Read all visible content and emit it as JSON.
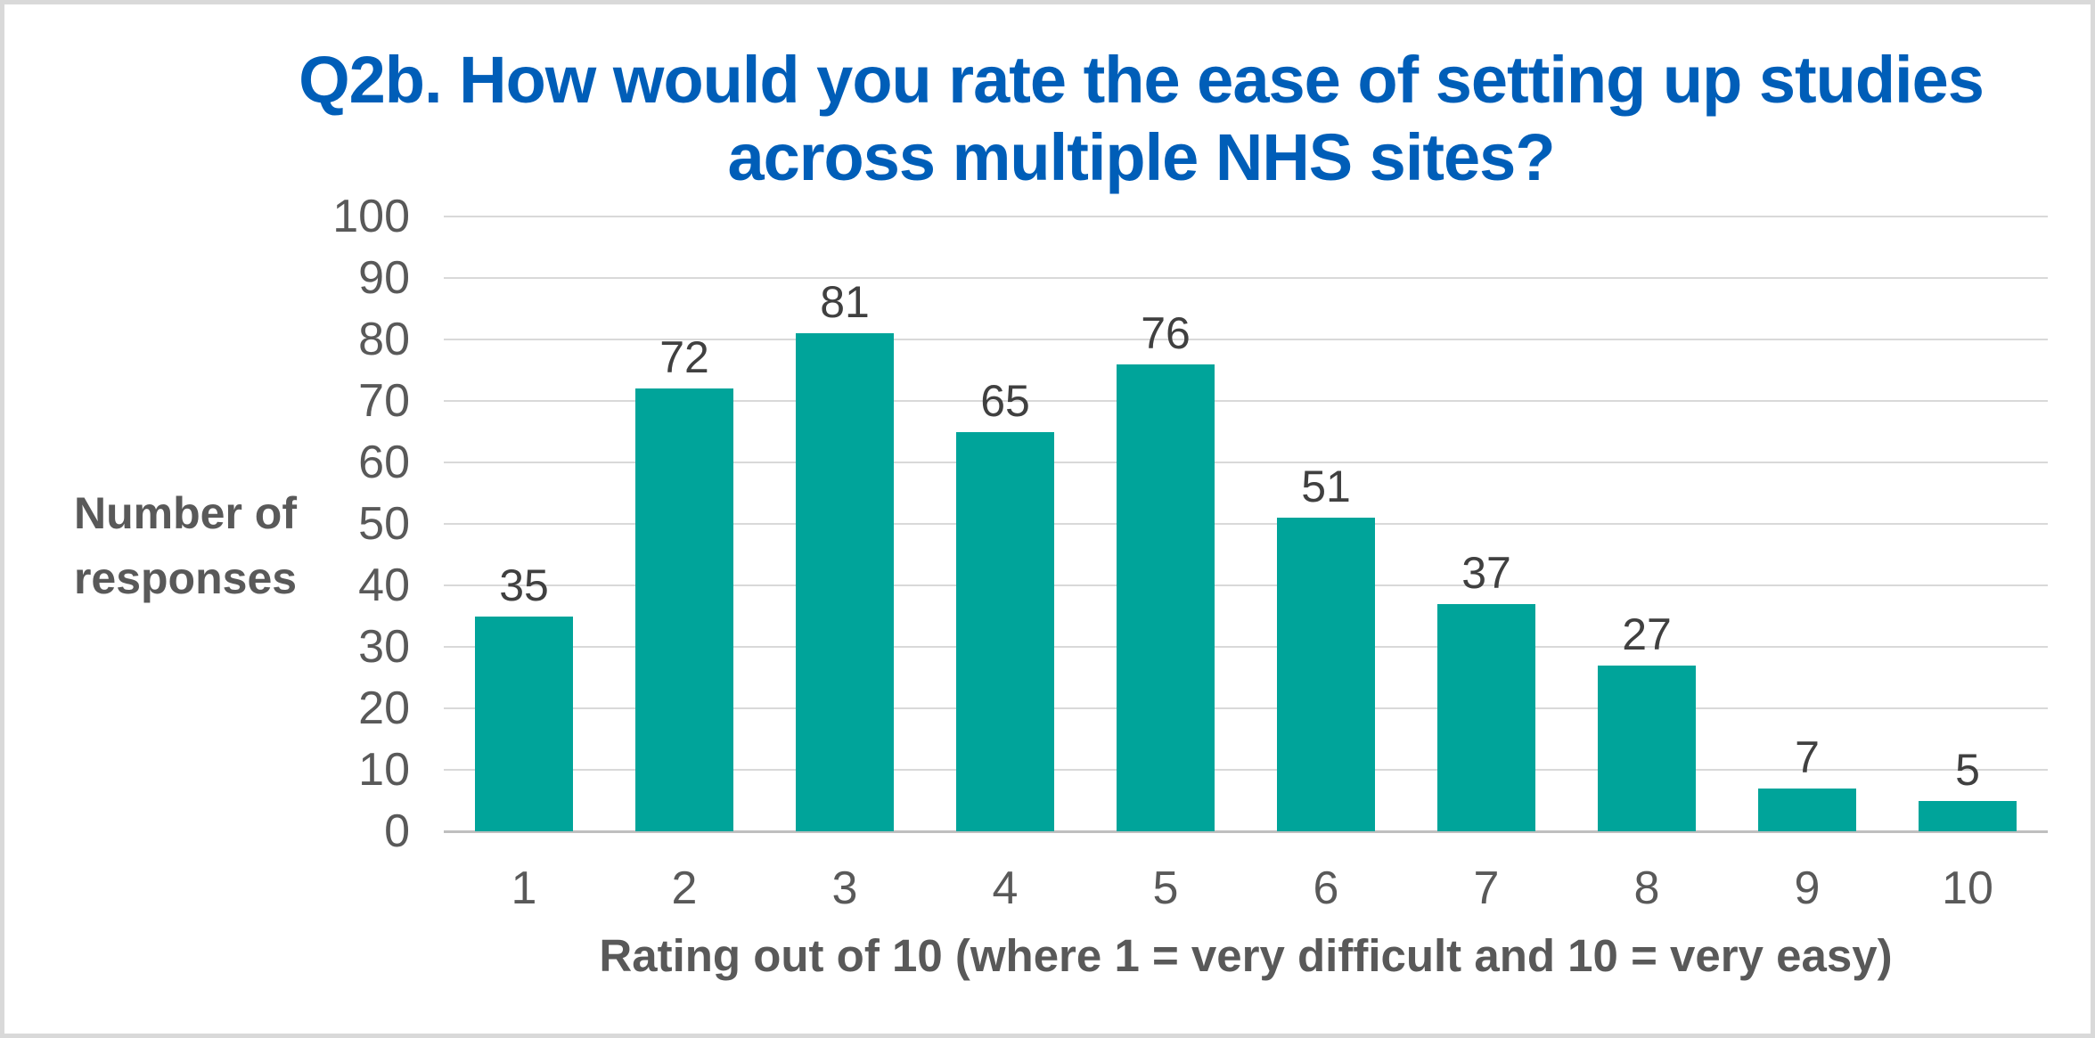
{
  "chart_data": {
    "type": "bar",
    "title": "Q2b. How would you rate the ease of setting up studies across multiple NHS sites?",
    "title_lines": [
      "Q2b. How would you rate the ease of setting up studies",
      "across multiple NHS sites?"
    ],
    "categories": [
      "1",
      "2",
      "3",
      "4",
      "5",
      "6",
      "7",
      "8",
      "9",
      "10"
    ],
    "values": [
      35,
      72,
      81,
      65,
      76,
      51,
      37,
      27,
      7,
      5
    ],
    "ylabel": "Number of responses",
    "ylabel_lines": [
      "Number of",
      "responses"
    ],
    "xlabel": "Rating out of 10 (where 1 = very difficult and 10 = very easy)",
    "ylim": [
      0,
      100
    ],
    "ytick_step": 10,
    "ytick_labels": [
      "0",
      "10",
      "20",
      "30",
      "40",
      "50",
      "60",
      "70",
      "80",
      "90",
      "100"
    ],
    "grid": "horizontal",
    "legend": "none",
    "colors": {
      "bar": "#00A49A",
      "title": "#005EB8",
      "axis_text": "#595959",
      "data_label": "#404040",
      "gridline": "#D9D9D9",
      "axis_line": "#BFBFBF",
      "frame_border": "#D9D9D9"
    }
  }
}
